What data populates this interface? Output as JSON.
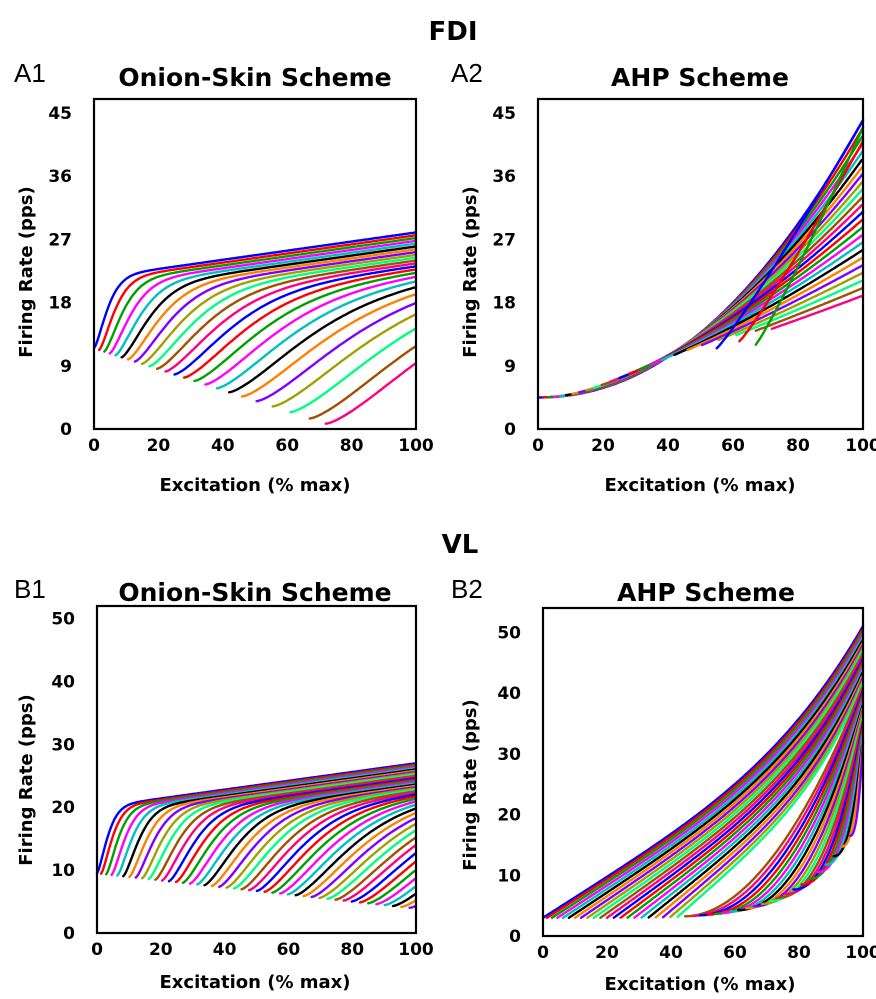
{
  "groups": [
    {
      "label": "FDI"
    },
    {
      "label": "VL"
    }
  ],
  "chart_data": [
    {
      "id": "A1",
      "type": "line",
      "title": "Onion-Skin Scheme",
      "xlabel": "Excitation (% max)",
      "ylabel": "Firing Rate (pps)",
      "xlim": [
        0,
        100
      ],
      "ylim": [
        0,
        47
      ],
      "xticks": [
        0,
        20,
        40,
        60,
        80,
        100
      ],
      "yticks": [
        0,
        9,
        18,
        27,
        36,
        45
      ],
      "grid": false,
      "legend": "none",
      "model": "onion",
      "n_series": 24,
      "onsets": [
        0,
        1.6,
        3.2,
        4.9,
        6.7,
        8.6,
        10.6,
        12.7,
        14.9,
        17.2,
        19.6,
        22.2,
        25,
        28,
        31.2,
        34.6,
        38.2,
        42,
        46,
        50.5,
        55.5,
        61,
        67,
        72
      ],
      "onset_rate": {
        "x": [
          0,
          67
        ],
        "y": [
          11.5,
          1.5
        ]
      },
      "plateau": {
        "x": [
          0,
          100
        ],
        "y": [
          21.5,
          28
        ]
      },
      "rise_scale": {
        "first": 5,
        "last": 38
      }
    },
    {
      "id": "A2",
      "type": "line",
      "title": "AHP Scheme",
      "xlabel": "Excitation (% max)",
      "ylabel": "Firing Rate (pps)",
      "xlim": [
        0,
        100
      ],
      "ylim": [
        0,
        47
      ],
      "xticks": [
        0,
        20,
        40,
        60,
        80,
        100
      ],
      "yticks": [
        0,
        9,
        18,
        27,
        36,
        45
      ],
      "grid": false,
      "legend": "none",
      "model": "ahp-linear",
      "n_series": 24,
      "onsets": [
        0,
        1.6,
        3.2,
        4.9,
        6.7,
        8.6,
        10.6,
        12.7,
        14.9,
        17.2,
        19.6,
        22.2,
        25,
        28,
        31.2,
        34.6,
        38.2,
        42,
        46,
        50.5,
        55.5,
        61,
        67,
        72
      ],
      "start_rate": 4.5,
      "end_rate_range": [
        19,
        44
      ],
      "late_recruit": [
        {
          "x": [
            55,
            100
          ],
          "y": [
            11.5,
            44
          ]
        },
        {
          "x": [
            62,
            100
          ],
          "y": [
            12.5,
            41
          ]
        },
        {
          "x": [
            67,
            100
          ],
          "y": [
            12,
            43
          ]
        }
      ]
    },
    {
      "id": "B1",
      "type": "line",
      "title": "Onion-Skin Scheme",
      "xlabel": "Excitation (% max)",
      "ylabel": "Firing Rate (pps)",
      "xlim": [
        0,
        100
      ],
      "ylim": [
        0,
        52
      ],
      "xticks": [
        0,
        20,
        40,
        60,
        80,
        100
      ],
      "yticks": [
        0,
        10,
        20,
        30,
        40,
        50
      ],
      "grid": false,
      "legend": "none",
      "model": "onion",
      "n_series": 44,
      "onset_range": [
        0,
        98
      ],
      "onset_rate": {
        "x": [
          0,
          98
        ],
        "y": [
          9.5,
          4
        ]
      },
      "plateau": {
        "x": [
          0,
          100
        ],
        "y": [
          20,
          27
        ]
      },
      "rise_scale": {
        "first": 4,
        "last": 30
      }
    },
    {
      "id": "B2",
      "type": "line",
      "title": "AHP Scheme",
      "xlabel": "Excitation (% max)",
      "ylabel": "Firing Rate (pps)",
      "xlim": [
        0,
        100
      ],
      "ylim": [
        0,
        54
      ],
      "xticks": [
        0,
        20,
        40,
        60,
        80,
        100
      ],
      "yticks": [
        0,
        10,
        20,
        30,
        40,
        50
      ],
      "grid": false,
      "legend": "none",
      "model": "ahp-exp",
      "n_series": 44,
      "onset_range": [
        0,
        96
      ],
      "start_rate": 3,
      "end_rate_range": [
        32,
        51
      ],
      "late_start_rate": 16.5
    }
  ],
  "colors": [
    "#0000ff",
    "#ff0000",
    "#00a000",
    "#ff00ff",
    "#00c0c0",
    "#000000",
    "#ff8000",
    "#8000ff",
    "#a0a000",
    "#00ff80",
    "#a05000",
    "#ff0080"
  ]
}
